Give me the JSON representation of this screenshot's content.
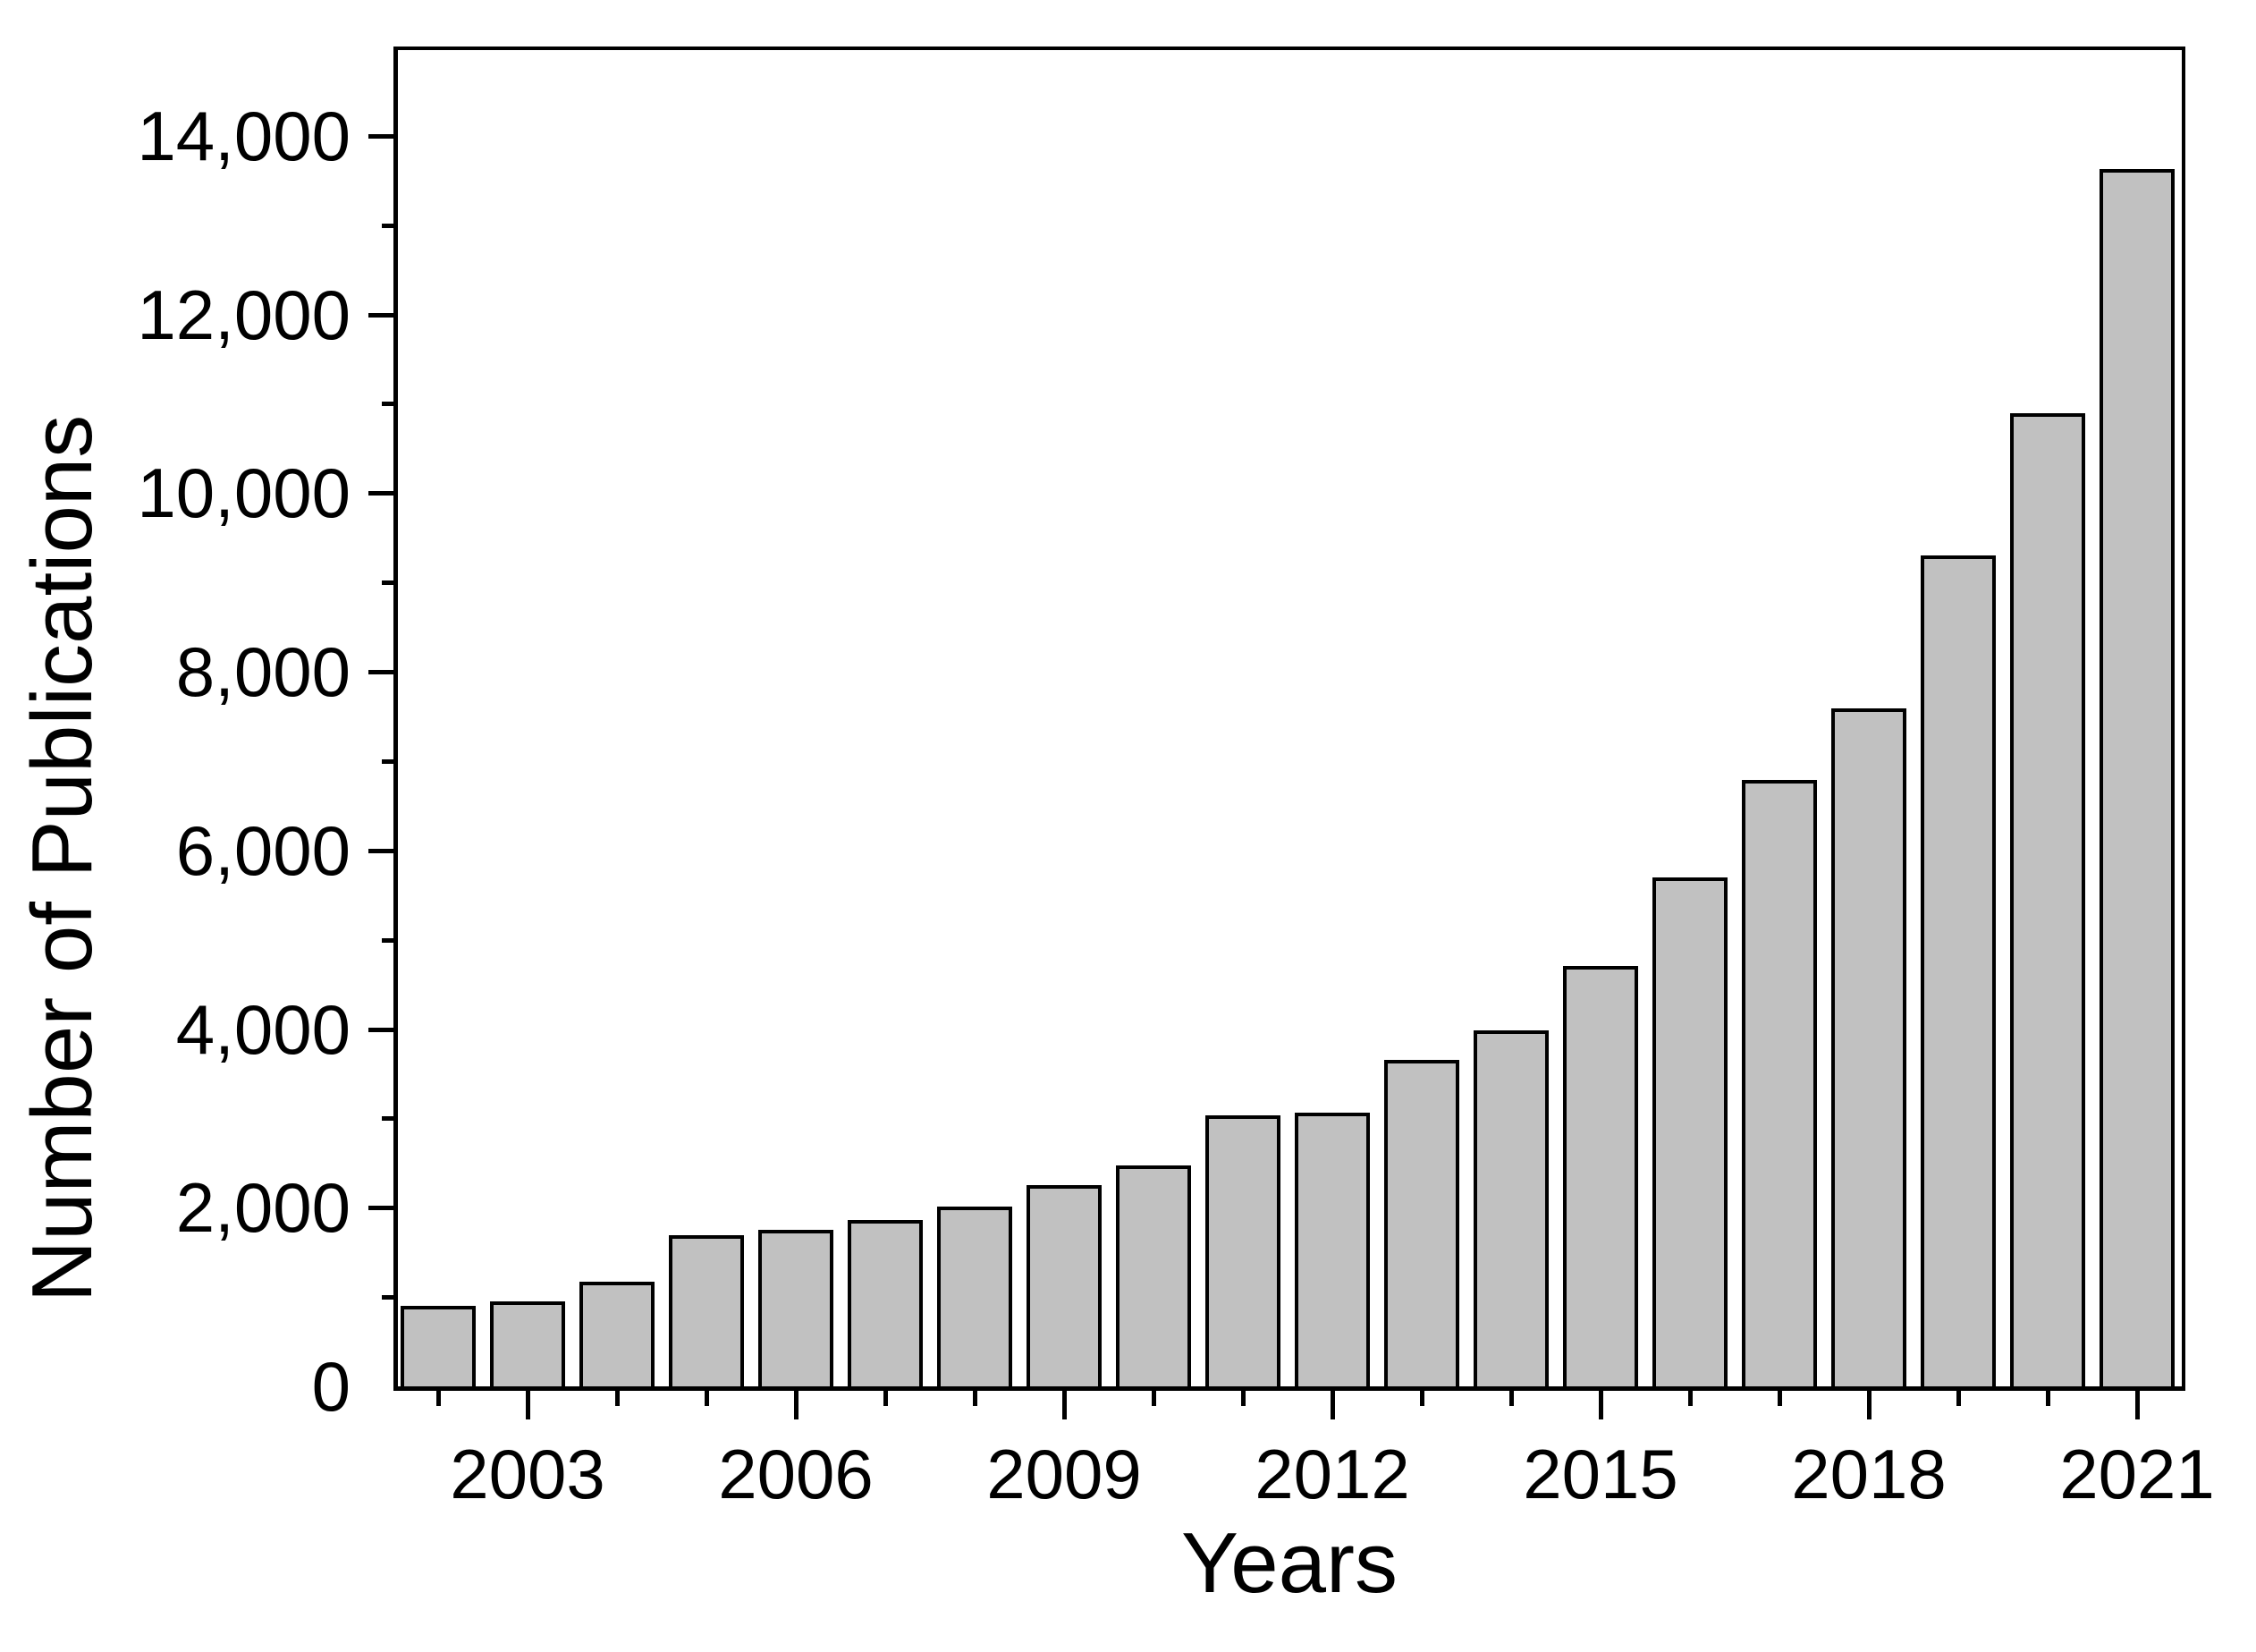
{
  "chart_data": {
    "type": "bar",
    "title": "",
    "xlabel": "Years",
    "ylabel": "Number of Publications",
    "categories": [
      "2002",
      "2003",
      "2004",
      "2005",
      "2006",
      "2007",
      "2008",
      "2009",
      "2010",
      "2011",
      "2012",
      "2013",
      "2014",
      "2015",
      "2016",
      "2017",
      "2018",
      "2019",
      "2020",
      "2021"
    ],
    "values": [
      900,
      950,
      1170,
      1690,
      1750,
      1860,
      2010,
      2250,
      2470,
      3030,
      3060,
      3650,
      3990,
      4710,
      5700,
      6790,
      7590,
      9300,
      10890,
      13630
    ],
    "ylim": [
      0,
      15000
    ],
    "grid": "off",
    "legend": "none",
    "y_axis": {
      "major_ticks": [
        0,
        2000,
        4000,
        6000,
        8000,
        10000,
        12000,
        14000
      ],
      "major_tick_labels": [
        "0",
        "2,000",
        "4,000",
        "6,000",
        "8,000",
        "10,000",
        "12,000",
        "14,000"
      ],
      "minor_ticks": [
        1000,
        3000,
        5000,
        7000,
        9000,
        11000,
        13000
      ]
    },
    "x_axis": {
      "labeled_years": [
        "2003",
        "2006",
        "2009",
        "2012",
        "2015",
        "2018",
        "2021"
      ],
      "tick_labels": [
        "2003",
        "2006",
        "2009",
        "2012",
        "2015",
        "2018",
        "2021"
      ]
    },
    "colors": {
      "bar_fill": "#c1c1c1",
      "bar_border": "#000000",
      "axis": "#000000",
      "background": "#ffffff",
      "text": "#000000"
    }
  }
}
